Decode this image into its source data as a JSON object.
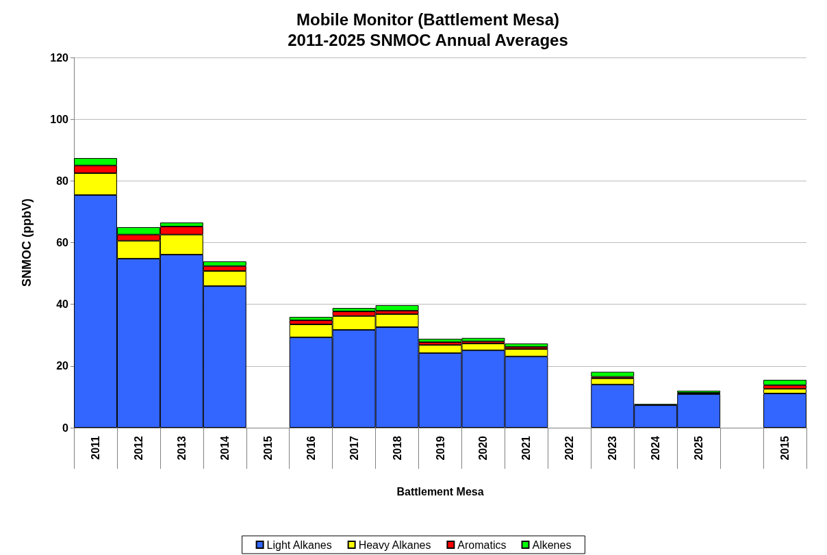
{
  "chart_data": {
    "type": "bar",
    "title": "Mobile Monitor (Battlement Mesa)\n2011-2025 SNMOC Annual Averages",
    "xlabel": "Battlement Mesa",
    "ylabel": "SNMOC (ppbV)",
    "categories": [
      "2011",
      "2012",
      "2013",
      "2014",
      "2015",
      "2016",
      "2017",
      "2018",
      "2019",
      "2020",
      "2021",
      "2022",
      "2023",
      "2024",
      "2025",
      null,
      "2015"
    ],
    "stacked": true,
    "ylim": [
      0,
      120
    ],
    "yticks": [
      0,
      20,
      40,
      60,
      80,
      100,
      120
    ],
    "grid": "y",
    "legend": "bottom",
    "series": [
      {
        "name": "Light Alkanes",
        "color": "#3366ff",
        "values": [
          75.4,
          54.8,
          56.1,
          45.9,
          null,
          29.3,
          31.7,
          32.6,
          24.2,
          25.1,
          23.1,
          null,
          14.0,
          7.3,
          10.9,
          null,
          11.1
        ]
      },
      {
        "name": "Heavy Alkanes",
        "color": "#ffff00",
        "values": [
          7.1,
          5.8,
          6.5,
          4.9,
          null,
          4.2,
          4.5,
          4.2,
          2.6,
          2.2,
          2.4,
          null,
          2.0,
          null,
          0.2,
          null,
          1.5
        ]
      },
      {
        "name": "Aromatics",
        "color": "#ff0000",
        "values": [
          2.5,
          2.0,
          2.6,
          1.6,
          null,
          1.3,
          1.5,
          1.1,
          0.9,
          0.7,
          0.7,
          null,
          0.5,
          null,
          0.2,
          null,
          1.2
        ]
      },
      {
        "name": "Alkenes",
        "color": "#00ff00",
        "values": [
          2.4,
          2.4,
          1.3,
          1.5,
          null,
          1.1,
          1.1,
          1.8,
          1.1,
          1.1,
          1.1,
          null,
          1.6,
          0.4,
          0.7,
          null,
          1.7
        ]
      }
    ]
  }
}
